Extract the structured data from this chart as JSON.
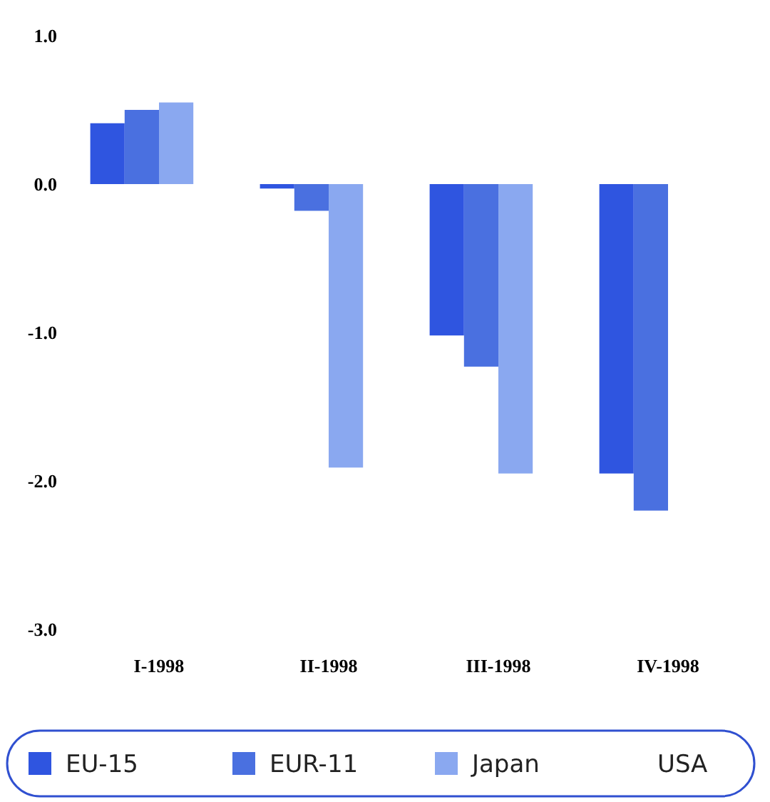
{
  "chart_data": {
    "type": "bar",
    "categories": [
      "I-1998",
      "II-1998",
      "III-1998",
      "IV-1998"
    ],
    "series": [
      {
        "name": "EU-15",
        "color": "#2f55e0",
        "values": [
          0.41,
          -0.03,
          -1.02,
          -1.95
        ]
      },
      {
        "name": "EUR-11",
        "color": "#4a70e0",
        "values": [
          0.5,
          -0.18,
          -1.23,
          -2.2
        ]
      },
      {
        "name": "Japan",
        "color": "#8aa8f0",
        "values": [
          0.55,
          -1.91,
          -1.95,
          null
        ]
      },
      {
        "name": "USA",
        "values": [
          null,
          null,
          null,
          null
        ]
      }
    ],
    "ylim": [
      -3,
      1
    ],
    "yticks": [
      {
        "value": 1,
        "label": "1.0"
      },
      {
        "value": 0,
        "label": "0.0"
      },
      {
        "value": -1,
        "label": "-1.0"
      },
      {
        "value": -2,
        "label": "-2.0"
      },
      {
        "value": -3,
        "label": "-3.0"
      }
    ],
    "grid": false,
    "legend": "bottom"
  }
}
